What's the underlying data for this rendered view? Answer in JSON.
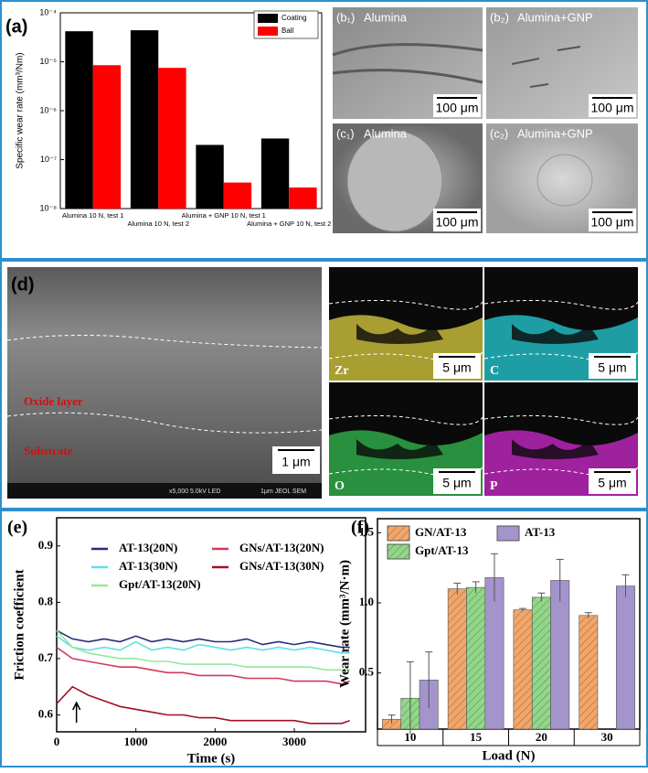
{
  "chart_data": [
    {
      "type": "bar",
      "panel_label": "(a)",
      "y_label": "Specific wear rate (mm³/Nm)",
      "categories": [
        "Alumina 10 N, test 1",
        "Alumina 10 N, test 2",
        "Alumina + GNP 10 N, test 1",
        "Alumina + GNP 10 N, test 2"
      ],
      "series": [
        {
          "name": "Coating",
          "color": "#000000",
          "values": [
            4.2e-05,
            4.4e-05,
            2e-07,
            2.7e-07
          ]
        },
        {
          "name": "Ball",
          "color": "#ff0000",
          "values": [
            8.5e-06,
            7.5e-06,
            3.4e-08,
            2.7e-08
          ]
        }
      ],
      "log_y": true,
      "ylim": [
        1e-08,
        0.0001
      ],
      "yticks": [
        {
          "value": 1e-08,
          "label": "10⁻⁸"
        },
        {
          "value": 1e-07,
          "label": "10⁻⁷"
        },
        {
          "value": 1e-06,
          "label": "10⁻⁶"
        },
        {
          "value": 1e-05,
          "label": "10⁻⁵"
        },
        {
          "value": 0.0001,
          "label": "10⁻⁴"
        }
      ],
      "legend": "upper right"
    },
    {
      "type": "line",
      "panel_label": "(e)",
      "x_label": "Time (s)",
      "y_label": "Friction coefficient",
      "x": [
        0,
        200,
        400,
        600,
        800,
        1000,
        1200,
        1400,
        1600,
        1800,
        2000,
        2200,
        2400,
        2600,
        2800,
        3000,
        3200,
        3400,
        3600,
        3700
      ],
      "series": [
        {
          "name": "AT-13(20N)",
          "color": "#2b2a7a",
          "values": [
            0.75,
            0.735,
            0.73,
            0.735,
            0.73,
            0.74,
            0.73,
            0.735,
            0.73,
            0.735,
            0.73,
            0.73,
            0.735,
            0.725,
            0.73,
            0.725,
            0.73,
            0.725,
            0.72,
            0.72
          ]
        },
        {
          "name": "AT-13(30N)",
          "color": "#5fe0e8",
          "values": [
            0.74,
            0.72,
            0.715,
            0.72,
            0.715,
            0.73,
            0.715,
            0.72,
            0.715,
            0.725,
            0.72,
            0.715,
            0.72,
            0.715,
            0.72,
            0.715,
            0.72,
            0.715,
            0.71,
            0.71
          ]
        },
        {
          "name": "Gpt/AT-13(20N)",
          "color": "#98e898",
          "values": [
            0.75,
            0.72,
            0.71,
            0.705,
            0.7,
            0.7,
            0.695,
            0.695,
            0.69,
            0.69,
            0.69,
            0.69,
            0.685,
            0.685,
            0.685,
            0.685,
            0.685,
            0.68,
            0.68,
            0.68
          ]
        },
        {
          "name": "GNs/AT-13(20N)",
          "color": "#d03a5a",
          "values": [
            0.72,
            0.7,
            0.695,
            0.69,
            0.685,
            0.685,
            0.68,
            0.675,
            0.675,
            0.67,
            0.67,
            0.67,
            0.665,
            0.665,
            0.665,
            0.66,
            0.66,
            0.66,
            0.655,
            0.66
          ]
        },
        {
          "name": "GNs/AT-13(30N)",
          "color": "#a0102a",
          "values": [
            0.62,
            0.65,
            0.635,
            0.625,
            0.615,
            0.61,
            0.605,
            0.6,
            0.6,
            0.595,
            0.595,
            0.59,
            0.59,
            0.59,
            0.59,
            0.59,
            0.585,
            0.585,
            0.585,
            0.59
          ]
        }
      ],
      "xlim": [
        0,
        3900
      ],
      "xticks": [
        0,
        1000,
        2000,
        3000
      ],
      "ylim": [
        0.57,
        0.95
      ],
      "yticks": [
        0.6,
        0.7,
        0.8,
        0.9
      ],
      "legend": "upper center"
    },
    {
      "type": "bar",
      "panel_label": "(f)",
      "x_label": "Load (N)",
      "y_label": "Wear rate (mm³/N·m)",
      "categories": [
        "10",
        "15",
        "20",
        "30"
      ],
      "series": [
        {
          "name": "GN/AT-13",
          "color": "#f2a66a",
          "hatch": "diagonal",
          "values": [
            0.17,
            1.1,
            0.95,
            0.91
          ],
          "errors": [
            0.03,
            0.04,
            0.01,
            0.02
          ]
        },
        {
          "name": "Gpt/AT-13",
          "color": "#8fd88a",
          "hatch": "diagonal",
          "values": [
            0.32,
            1.11,
            1.04,
            null
          ],
          "errors": [
            0.26,
            0.04,
            0.03,
            null
          ]
        },
        {
          "name": "AT-13",
          "color": "#a394cc",
          "values": [
            0.45,
            1.18,
            1.16,
            1.12
          ],
          "errors": [
            0.2,
            0.17,
            0.15,
            0.08
          ]
        }
      ],
      "ylim": [
        0.1,
        1.6
      ],
      "yticks": [
        0.5,
        {
          "value": 1,
          "label": "1.0"
        },
        1.5
      ],
      "legend": "upper left"
    }
  ],
  "panels": {
    "b1": {
      "label": "(b₁)",
      "title": "Alumina",
      "scale_bar": "100 μm"
    },
    "b2": {
      "label": "(b₂)",
      "title": "Alumina+GNP",
      "scale_bar": "100 μm"
    },
    "c1": {
      "label": "(c₁)",
      "title": "Alumina",
      "scale_bar": "100 μm"
    },
    "c2": {
      "label": "(c₂)",
      "title": "Alumina+GNP",
      "scale_bar": "100 μm"
    },
    "d": {
      "label": "(d)",
      "oxide": "Oxide layer",
      "substrate": "Substrate",
      "scale_bar": "1 μm",
      "footer": "x5,000   5.0kV   LED",
      "footer_right": "1μm  JEOL  SEM",
      "maps_header": "Zr",
      "maps": [
        {
          "element": "Zr",
          "scale_bar": "5 μm"
        },
        {
          "element": "C",
          "scale_bar": "5 μm"
        },
        {
          "element": "O",
          "scale_bar": "5 μm"
        },
        {
          "element": "P",
          "scale_bar": "5 μm"
        }
      ]
    }
  }
}
